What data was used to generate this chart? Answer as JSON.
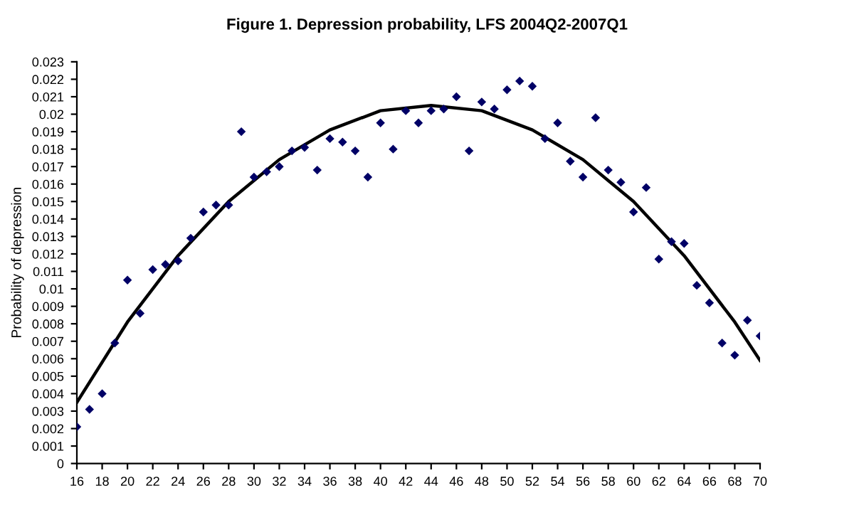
{
  "chart_data": {
    "type": "scatter",
    "title": "Figure 1. Depression probability, LFS 2004Q2-2007Q1",
    "ylabel": "Probability of depression",
    "xlim": [
      16,
      70
    ],
    "xticks": [
      16,
      18,
      20,
      22,
      24,
      26,
      28,
      30,
      32,
      34,
      36,
      38,
      40,
      42,
      44,
      46,
      48,
      50,
      52,
      54,
      56,
      58,
      60,
      62,
      64,
      66,
      68,
      70
    ],
    "ylim": [
      0,
      0.023
    ],
    "yticks": [
      0,
      0.001,
      0.002,
      0.003,
      0.004,
      0.005,
      0.006,
      0.007,
      0.008,
      0.009,
      0.01,
      0.011,
      0.012,
      0.013,
      0.014,
      0.015,
      0.016,
      0.017,
      0.018,
      0.019,
      0.02,
      0.021,
      0.022,
      0.023
    ],
    "grid": false,
    "legend": false,
    "marker": "diamond",
    "series": [
      {
        "color": "#000066",
        "x": [
          16,
          17,
          18,
          19,
          20,
          21,
          22,
          23,
          24,
          25,
          26,
          27,
          28,
          29,
          30,
          31,
          32,
          33,
          34,
          35,
          36,
          37,
          38,
          39,
          40,
          41,
          42,
          43,
          44,
          45,
          46,
          47,
          48,
          49,
          50,
          51,
          52,
          53,
          54,
          55,
          56,
          57,
          58,
          59,
          60,
          61,
          62,
          63,
          64,
          65,
          66,
          67,
          68,
          69,
          70
        ],
        "values": [
          0.0021,
          0.0031,
          0.004,
          0.0069,
          0.0105,
          0.0086,
          0.0111,
          0.0114,
          0.0116,
          0.0129,
          0.0144,
          0.0148,
          0.0148,
          0.019,
          0.0164,
          0.0167,
          0.017,
          0.0179,
          0.0181,
          0.0168,
          0.0186,
          0.0184,
          0.0179,
          0.0164,
          0.0195,
          0.018,
          0.0202,
          0.0195,
          0.0202,
          0.0203,
          0.021,
          0.0179,
          0.0207,
          0.0203,
          0.0214,
          0.0219,
          0.0216,
          0.0186,
          0.0195,
          0.0173,
          0.0164,
          0.0198,
          0.0168,
          0.0161,
          0.0144,
          0.0158,
          0.0117,
          0.0127,
          0.0126,
          0.0102,
          0.0092,
          0.0069,
          0.0062,
          0.0082,
          0.0073
        ]
      },
      {
        "type": "line",
        "color": "#000000",
        "marker": "none",
        "line_style": "solid",
        "x": [
          16,
          20,
          24,
          28,
          32,
          36,
          40,
          44,
          48,
          52,
          56,
          60,
          64,
          68,
          70
        ],
        "values": [
          0.0035,
          0.0081,
          0.0119,
          0.015,
          0.0174,
          0.0191,
          0.0202,
          0.0205,
          0.0202,
          0.0191,
          0.0174,
          0.015,
          0.0119,
          0.0081,
          0.0059
        ]
      }
    ]
  }
}
